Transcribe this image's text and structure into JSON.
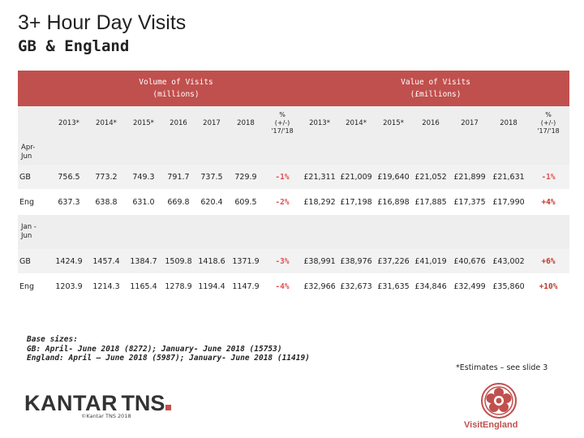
{
  "title": "3+ Hour Day Visits",
  "subtitle": "GB & England",
  "table": {
    "volume_header": [
      "Volume of Visits",
      "(millions)"
    ],
    "value_header": [
      "Value of Visits",
      "(£millions)"
    ],
    "columns": [
      "2013*",
      "2014*",
      "2015*",
      "2016",
      "2017",
      "2018"
    ],
    "pct_header": [
      "%",
      "(+/-)",
      "'17/'18"
    ],
    "sections": [
      {
        "label": [
          "Apr-",
          "Jun"
        ],
        "rows": [
          {
            "region": "GB",
            "volume": [
              "756.5",
              "773.2",
              "749.3",
              "791.7",
              "737.5",
              "729.9"
            ],
            "volume_change": "-1%",
            "value": [
              "£21,311",
              "£21,009",
              "£19,640",
              "£21,052",
              "£21,899",
              "£21,631"
            ],
            "value_change": "-1%"
          },
          {
            "region": "Eng",
            "volume": [
              "637.3",
              "638.8",
              "631.0",
              "669.8",
              "620.4",
              "609.5"
            ],
            "volume_change": "-2%",
            "value": [
              "£18,292",
              "£17,198",
              "£16,898",
              "£17,885",
              "£17,375",
              "£17,990"
            ],
            "value_change": "+4%"
          }
        ]
      },
      {
        "label": [
          "Jan -",
          "Jun"
        ],
        "rows": [
          {
            "region": "GB",
            "volume": [
              "1424.9",
              "1457.4",
              "1384.7",
              "1509.8",
              "1418.6",
              "1371.9"
            ],
            "volume_change": "-3%",
            "value": [
              "£38,991",
              "£38,976",
              "£37,226",
              "£41,019",
              "£40,676",
              "£43,002"
            ],
            "value_change": "+6%"
          },
          {
            "region": "Eng",
            "volume": [
              "1203.9",
              "1214.3",
              "1165.4",
              "1278.9",
              "1194.4",
              "1147.9"
            ],
            "volume_change": "-4%",
            "value": [
              "£32,966",
              "£32,673",
              "£31,635",
              "£34,846",
              "£32,499",
              "£35,860"
            ],
            "value_change": "+10%"
          }
        ]
      }
    ]
  },
  "footnote": {
    "line1": "Base sizes:",
    "line2": "GB: April- June 2018 (8272); January- June 2018 (15753)",
    "line3": "England: April – June 2018 (5987); January- June 2018 (11419)"
  },
  "estimates_note": "*Estimates – see slide 3",
  "kantar": {
    "word": "KANTAR",
    "tns": "TNS",
    "copyright": "©Kantar TNS 2018"
  },
  "visit_england": {
    "label": "VisitEngland"
  },
  "colors": {
    "accent": "#c0504d"
  }
}
